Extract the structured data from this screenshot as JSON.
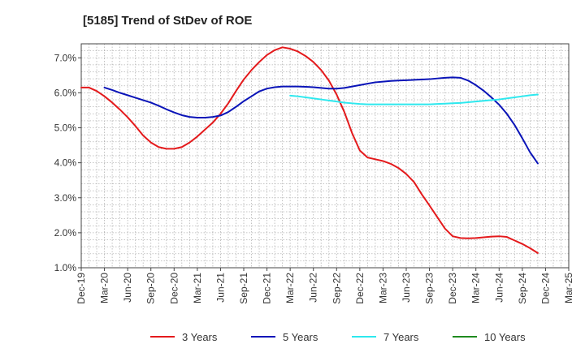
{
  "chart_data": {
    "type": "line",
    "title": "[5185]  Trend of StDev of ROE",
    "xlabel": "",
    "ylabel": "",
    "x_ticks": [
      "Dec-19",
      "Mar-20",
      "Jun-20",
      "Sep-20",
      "Dec-20",
      "Mar-21",
      "Jun-21",
      "Sep-21",
      "Dec-21",
      "Mar-22",
      "Jun-22",
      "Sep-22",
      "Dec-22",
      "Mar-23",
      "Jun-23",
      "Sep-23",
      "Dec-23",
      "Mar-24",
      "Jun-24",
      "Sep-24",
      "Dec-24",
      "Mar-25"
    ],
    "y_ticks": [
      "1.0%",
      "2.0%",
      "3.0%",
      "4.0%",
      "5.0%",
      "6.0%",
      "7.0%"
    ],
    "ylim": [
      1.0,
      7.4
    ],
    "grid": true,
    "legend_position": "bottom",
    "series": [
      {
        "name": "3 Years",
        "color": "#e41a1c",
        "points": [
          [
            "Dec-19",
            6.15
          ],
          [
            "Jan-20",
            6.15
          ],
          [
            "Feb-20",
            6.05
          ],
          [
            "Mar-20",
            5.9
          ],
          [
            "Apr-20",
            5.72
          ],
          [
            "May-20",
            5.52
          ],
          [
            "Jun-20",
            5.3
          ],
          [
            "Jul-20",
            5.05
          ],
          [
            "Aug-20",
            4.78
          ],
          [
            "Sep-20",
            4.58
          ],
          [
            "Oct-20",
            4.45
          ],
          [
            "Nov-20",
            4.4
          ],
          [
            "Dec-20",
            4.4
          ],
          [
            "Jan-21",
            4.45
          ],
          [
            "Feb-21",
            4.58
          ],
          [
            "Mar-21",
            4.75
          ],
          [
            "Apr-21",
            4.95
          ],
          [
            "May-21",
            5.15
          ],
          [
            "Jun-21",
            5.4
          ],
          [
            "Jul-21",
            5.7
          ],
          [
            "Aug-21",
            6.05
          ],
          [
            "Sep-21",
            6.38
          ],
          [
            "Oct-21",
            6.65
          ],
          [
            "Nov-21",
            6.88
          ],
          [
            "Dec-21",
            7.08
          ],
          [
            "Jan-22",
            7.22
          ],
          [
            "Feb-22",
            7.3
          ],
          [
            "Mar-22",
            7.26
          ],
          [
            "Apr-22",
            7.18
          ],
          [
            "May-22",
            7.05
          ],
          [
            "Jun-22",
            6.88
          ],
          [
            "Jul-22",
            6.65
          ],
          [
            "Aug-22",
            6.35
          ],
          [
            "Sep-22",
            5.95
          ],
          [
            "Oct-22",
            5.45
          ],
          [
            "Nov-22",
            4.85
          ],
          [
            "Dec-22",
            4.35
          ],
          [
            "Jan-23",
            4.15
          ],
          [
            "Feb-23",
            4.1
          ],
          [
            "Mar-23",
            4.05
          ],
          [
            "Apr-23",
            3.97
          ],
          [
            "May-23",
            3.85
          ],
          [
            "Jun-23",
            3.68
          ],
          [
            "Jul-23",
            3.45
          ],
          [
            "Aug-23",
            3.1
          ],
          [
            "Sep-23",
            2.78
          ],
          [
            "Oct-23",
            2.45
          ],
          [
            "Nov-23",
            2.12
          ],
          [
            "Dec-23",
            1.9
          ],
          [
            "Jan-24",
            1.85
          ],
          [
            "Feb-24",
            1.84
          ],
          [
            "Mar-24",
            1.85
          ],
          [
            "Apr-24",
            1.87
          ],
          [
            "May-24",
            1.89
          ],
          [
            "Jun-24",
            1.9
          ],
          [
            "Jul-24",
            1.88
          ],
          [
            "Aug-24",
            1.78
          ],
          [
            "Sep-24",
            1.68
          ],
          [
            "Oct-24",
            1.56
          ],
          [
            "Nov-24",
            1.42
          ]
        ]
      },
      {
        "name": "5 Years",
        "color": "#0a14b8",
        "points": [
          [
            "Mar-20",
            6.15
          ],
          [
            "Apr-20",
            6.08
          ],
          [
            "May-20",
            6.0
          ],
          [
            "Jun-20",
            5.93
          ],
          [
            "Jul-20",
            5.86
          ],
          [
            "Aug-20",
            5.79
          ],
          [
            "Sep-20",
            5.72
          ],
          [
            "Oct-20",
            5.63
          ],
          [
            "Nov-20",
            5.53
          ],
          [
            "Dec-20",
            5.44
          ],
          [
            "Jan-21",
            5.36
          ],
          [
            "Feb-21",
            5.31
          ],
          [
            "Mar-21",
            5.29
          ],
          [
            "Apr-21",
            5.29
          ],
          [
            "May-21",
            5.31
          ],
          [
            "Jun-21",
            5.35
          ],
          [
            "Jul-21",
            5.45
          ],
          [
            "Aug-21",
            5.6
          ],
          [
            "Sep-21",
            5.76
          ],
          [
            "Oct-21",
            5.9
          ],
          [
            "Nov-21",
            6.04
          ],
          [
            "Dec-21",
            6.12
          ],
          [
            "Jan-22",
            6.16
          ],
          [
            "Feb-22",
            6.18
          ],
          [
            "Mar-22",
            6.18
          ],
          [
            "Apr-22",
            6.18
          ],
          [
            "May-22",
            6.17
          ],
          [
            "Jun-22",
            6.16
          ],
          [
            "Jul-22",
            6.14
          ],
          [
            "Aug-22",
            6.12
          ],
          [
            "Sep-22",
            6.12
          ],
          [
            "Oct-22",
            6.14
          ],
          [
            "Nov-22",
            6.18
          ],
          [
            "Dec-22",
            6.22
          ],
          [
            "Jan-23",
            6.26
          ],
          [
            "Feb-23",
            6.3
          ],
          [
            "Mar-23",
            6.32
          ],
          [
            "Apr-23",
            6.34
          ],
          [
            "May-23",
            6.35
          ],
          [
            "Jun-23",
            6.36
          ],
          [
            "Jul-23",
            6.37
          ],
          [
            "Aug-23",
            6.38
          ],
          [
            "Sep-23",
            6.39
          ],
          [
            "Oct-23",
            6.41
          ],
          [
            "Nov-23",
            6.43
          ],
          [
            "Dec-23",
            6.44
          ],
          [
            "Jan-24",
            6.43
          ],
          [
            "Feb-24",
            6.35
          ],
          [
            "Mar-24",
            6.22
          ],
          [
            "Apr-24",
            6.06
          ],
          [
            "May-24",
            5.87
          ],
          [
            "Jun-24",
            5.66
          ],
          [
            "Jul-24",
            5.4
          ],
          [
            "Aug-24",
            5.08
          ],
          [
            "Sep-24",
            4.7
          ],
          [
            "Oct-24",
            4.3
          ],
          [
            "Nov-24",
            3.98
          ]
        ]
      },
      {
        "name": "7 Years",
        "color": "#2ee8ee",
        "points": [
          [
            "Mar-22",
            5.92
          ],
          [
            "Apr-22",
            5.9
          ],
          [
            "May-22",
            5.87
          ],
          [
            "Jun-22",
            5.84
          ],
          [
            "Jul-22",
            5.81
          ],
          [
            "Aug-22",
            5.78
          ],
          [
            "Sep-22",
            5.75
          ],
          [
            "Oct-22",
            5.72
          ],
          [
            "Nov-22",
            5.7
          ],
          [
            "Dec-22",
            5.68
          ],
          [
            "Jan-23",
            5.67
          ],
          [
            "Feb-23",
            5.67
          ],
          [
            "Mar-23",
            5.67
          ],
          [
            "Apr-23",
            5.67
          ],
          [
            "May-23",
            5.67
          ],
          [
            "Jun-23",
            5.67
          ],
          [
            "Jul-23",
            5.67
          ],
          [
            "Aug-23",
            5.67
          ],
          [
            "Sep-23",
            5.67
          ],
          [
            "Oct-23",
            5.68
          ],
          [
            "Nov-23",
            5.69
          ],
          [
            "Dec-23",
            5.7
          ],
          [
            "Jan-24",
            5.71
          ],
          [
            "Feb-24",
            5.73
          ],
          [
            "Mar-24",
            5.75
          ],
          [
            "Apr-24",
            5.77
          ],
          [
            "May-24",
            5.79
          ],
          [
            "Jun-24",
            5.81
          ],
          [
            "Jul-24",
            5.84
          ],
          [
            "Aug-24",
            5.87
          ],
          [
            "Sep-24",
            5.9
          ],
          [
            "Oct-24",
            5.93
          ],
          [
            "Nov-24",
            5.95
          ]
        ]
      },
      {
        "name": "10 Years",
        "color": "#1f8a1f",
        "points": []
      }
    ]
  }
}
